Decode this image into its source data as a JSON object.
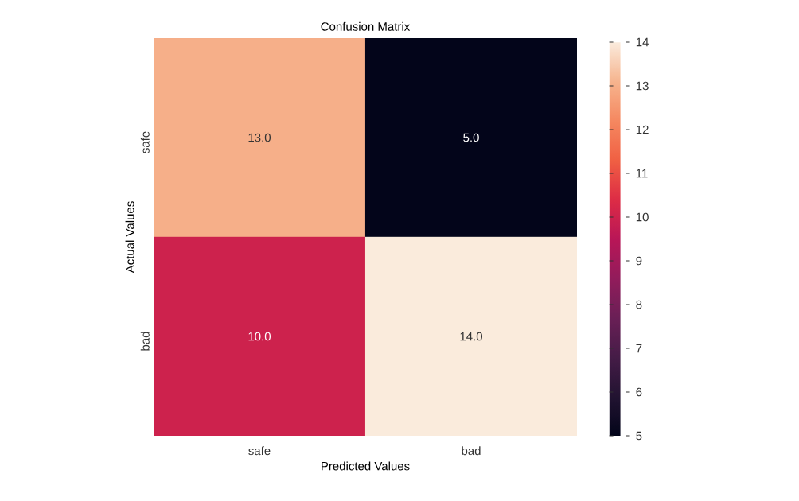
{
  "chart_data": {
    "type": "heatmap",
    "title": "Confusion Matrix",
    "xlabel": "Predicted Values",
    "ylabel": "Actual Values",
    "categories": [
      "safe",
      "bad"
    ],
    "y_categories": [
      "safe",
      "bad"
    ],
    "cells": [
      [
        13,
        5
      ],
      [
        10,
        14
      ]
    ],
    "cell_labels": [
      [
        "13.0",
        "5.0"
      ],
      [
        "10.0",
        "14.0"
      ]
    ],
    "clim": [
      5,
      14
    ],
    "cticks": [
      5,
      6,
      7,
      8,
      9,
      10,
      11,
      12,
      13,
      14
    ]
  }
}
